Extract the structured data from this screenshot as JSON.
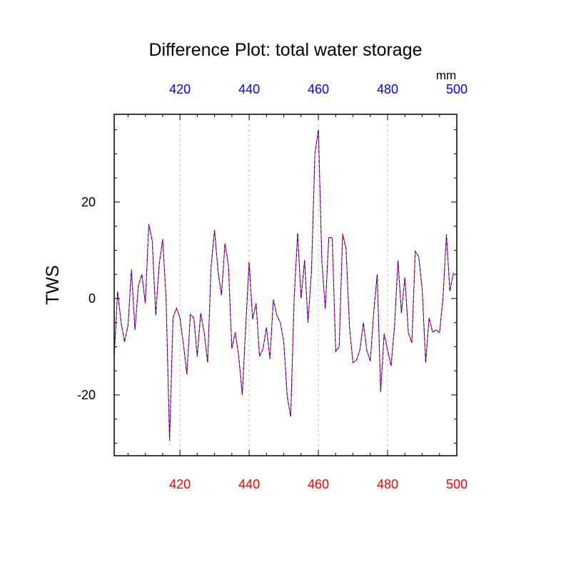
{
  "chart_data": {
    "type": "line",
    "title": "Difference Plot: total water storage",
    "ylabel": "TWS",
    "top_axis_units": "mm",
    "xlim": [
      401,
      500
    ],
    "ylim": [
      -32.6,
      38.2
    ],
    "x_ticks": [
      420,
      440,
      460,
      480,
      500
    ],
    "y_ticks": [
      -20,
      0,
      20
    ],
    "grid": "vertical dotted at x ticks",
    "colors": {
      "bottom_axis": "#ff0000",
      "top_axis": "#0000ff",
      "line_a": "#ff0000",
      "line_b": "#0000ff",
      "grid": "#bbbbbb"
    },
    "x_start": 400,
    "x_step": 1,
    "series": [
      {
        "name": "series-red-solid",
        "values": [
          -1,
          -12,
          1.5,
          -5,
          -9,
          -5.5,
          6,
          -6.5,
          2.7,
          5,
          -1,
          15.4,
          12,
          -3.5,
          7,
          12.3,
          0,
          -29.5,
          -4,
          -2,
          -4,
          -9.5,
          -15.7,
          -3.3,
          -4,
          -12,
          -3,
          -7,
          -13.3,
          6.8,
          14.2,
          5.6,
          0.7,
          11.4,
          7,
          -10.4,
          -7,
          -12,
          -20,
          -6,
          7.6,
          -4.3,
          -1,
          -12,
          -10.4,
          -6,
          -12.5,
          -0.2,
          -3.5,
          -5,
          -9,
          -20.3,
          -24.5,
          0,
          13.6,
          0,
          8,
          -5,
          5.6,
          30,
          35,
          7.8,
          -2.2,
          12.6,
          12.6,
          -11,
          -10,
          13.4,
          10.4,
          -6,
          -13.3,
          -12.8,
          -10.7,
          -5,
          -10.7,
          -13,
          -2.8,
          5,
          -19.4,
          -7.3,
          -10.7,
          -14,
          -5.8,
          7.9,
          -3,
          4.4,
          -7.1,
          -9.2,
          9.8,
          8.6,
          1.9,
          -13.3,
          -4,
          -7,
          -6.5,
          -7.1,
          0,
          13.3,
          1.5,
          5.3
        ]
      },
      {
        "name": "series-blue-dashed",
        "values": [
          -1,
          -12,
          1.5,
          -5,
          -9,
          -5.5,
          6,
          -6.5,
          2.7,
          5,
          -1,
          15.4,
          12,
          -3.5,
          7,
          12.3,
          0,
          -29.5,
          -4,
          -2,
          -4,
          -9.5,
          -15.7,
          -3.3,
          -4,
          -12,
          -3,
          -7,
          -13.3,
          6.8,
          14.2,
          5.6,
          0.7,
          11.4,
          7,
          -10.4,
          -7,
          -12,
          -20,
          -6,
          7.6,
          -4.3,
          -1,
          -12,
          -10.4,
          -6,
          -12.5,
          -0.2,
          -3.5,
          -5,
          -9,
          -20.3,
          -24.5,
          0,
          13.6,
          0,
          8,
          -5,
          5.6,
          30,
          35,
          7.8,
          -2.2,
          12.6,
          12.6,
          -11,
          -10,
          13.4,
          10.4,
          -6,
          -13.3,
          -12.8,
          -10.7,
          -5,
          -10.7,
          -13,
          -2.8,
          5,
          -19.4,
          -7.3,
          -10.7,
          -14,
          -5.8,
          7.9,
          -3,
          4.4,
          -7.1,
          -9.2,
          9.8,
          8.6,
          1.9,
          -13.3,
          -4,
          -7,
          -6.5,
          -7.1,
          0,
          13.3,
          1.5,
          5.3
        ]
      }
    ]
  }
}
